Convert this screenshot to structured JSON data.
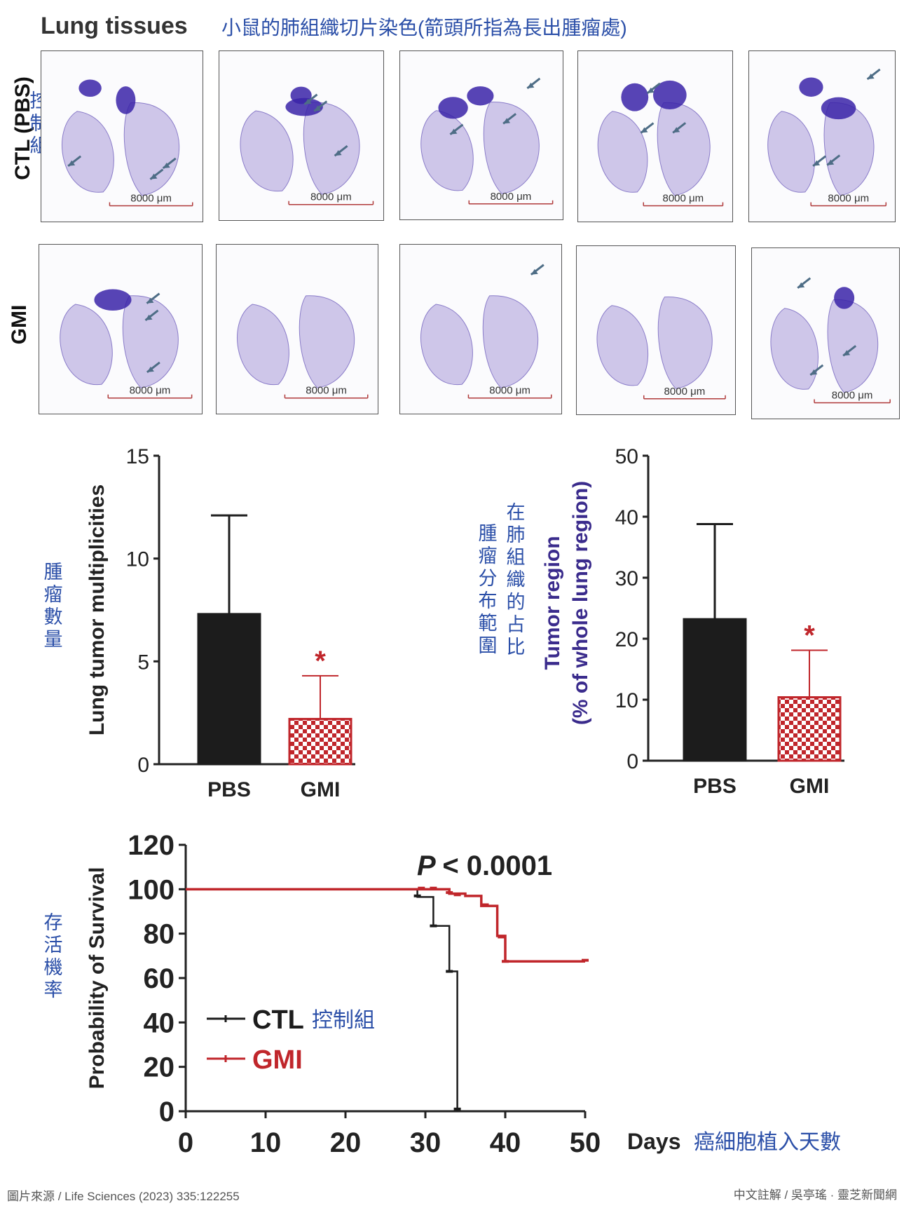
{
  "header": {
    "title_en": "Lung tissues",
    "title_zh": "小鼠的肺組織切片染色(箭頭所指為長出腫瘤處)"
  },
  "rows": [
    {
      "label": "CTL (PBS)",
      "label_zh": "控制組"
    },
    {
      "label": "GMI"
    }
  ],
  "scale_bar": "8000 μm",
  "colors": {
    "ctl": "#1c1c1c",
    "gmi": "#c0262b",
    "annotation": "#2b4fa8",
    "tissue": "#a99ad8",
    "tumor": "#3a23a8",
    "arrow": "#4e6d86"
  },
  "chart_data": [
    {
      "type": "bar",
      "categories": [
        "PBS",
        "GMI"
      ],
      "values": [
        7.3,
        2.2
      ],
      "errors": [
        4.8,
        2.1
      ],
      "significance": [
        "",
        "*"
      ],
      "ylabel": "Lung tumor multiplicities",
      "ylabel_zh": "腫瘤數量",
      "ylim": [
        0,
        15
      ],
      "yticks": [
        "0",
        "5",
        "10",
        "15"
      ]
    },
    {
      "type": "bar",
      "categories": [
        "PBS",
        "GMI"
      ],
      "values": [
        23.2,
        10.4
      ],
      "errors": [
        15.6,
        7.7
      ],
      "significance": [
        "",
        "*"
      ],
      "ylabel": "Tumor region",
      "ylabel2": "(% of whole lung region)",
      "ylabel_zh": [
        "在肺組織的占比",
        "腫瘤分布範圍"
      ],
      "ylim": [
        0,
        50
      ],
      "yticks": [
        "0",
        "10",
        "20",
        "30",
        "40",
        "50"
      ]
    },
    {
      "type": "line",
      "annotation": "P < 0.0001",
      "annotation_p": "P",
      "annotation_rest": "< 0.0001",
      "xlabel": "Days",
      "xlabel_zh": "癌細胞植入天數",
      "ylabel": "Probability of Survival",
      "ylabel_zh": "存活機率",
      "xlim": [
        0,
        50
      ],
      "ylim": [
        0,
        120
      ],
      "xticks": [
        "0",
        "10",
        "20",
        "30",
        "40",
        "50"
      ],
      "yticks": [
        "0",
        "20",
        "40",
        "60",
        "80",
        "100",
        "120"
      ],
      "legend_placement": "bottom-left",
      "series": [
        {
          "name": "CTL",
          "name_zh": "控制組",
          "steps": [
            [
              0,
              100
            ],
            [
              29,
              100
            ],
            [
              29,
              96.5
            ],
            [
              31,
              96.5
            ],
            [
              31,
              83.5
            ],
            [
              33,
              83.5
            ],
            [
              33,
              63
            ],
            [
              34,
              63
            ],
            [
              34,
              0
            ]
          ],
          "censors": [
            [
              29,
              97
            ],
            [
              31,
              83.5
            ],
            [
              33,
              63
            ],
            [
              34,
              1
            ]
          ]
        },
        {
          "name": "GMI",
          "steps": [
            [
              0,
              100
            ],
            [
              30,
              100
            ],
            [
              30,
              100
            ],
            [
              33,
              100
            ],
            [
              33,
              98
            ],
            [
              35,
              98
            ],
            [
              35,
              97
            ],
            [
              37,
              97
            ],
            [
              37,
              92.5
            ],
            [
              39,
              92.5
            ],
            [
              39,
              79
            ],
            [
              40,
              79
            ],
            [
              40,
              67.5
            ],
            [
              50,
              67.5
            ]
          ],
          "censors": [
            [
              29.5,
              100.5
            ],
            [
              31,
              100.5
            ],
            [
              33,
              98.5
            ],
            [
              34,
              97.5
            ],
            [
              37.5,
              93
            ],
            [
              39.5,
              78.5
            ],
            [
              40,
              67.5
            ],
            [
              50,
              68
            ]
          ]
        }
      ]
    }
  ],
  "footer": {
    "source": "圖片來源 / Life Sciences (2023) 335:122255",
    "credit": "中文註解 / 吳亭瑤 · 靈芝新聞網"
  }
}
